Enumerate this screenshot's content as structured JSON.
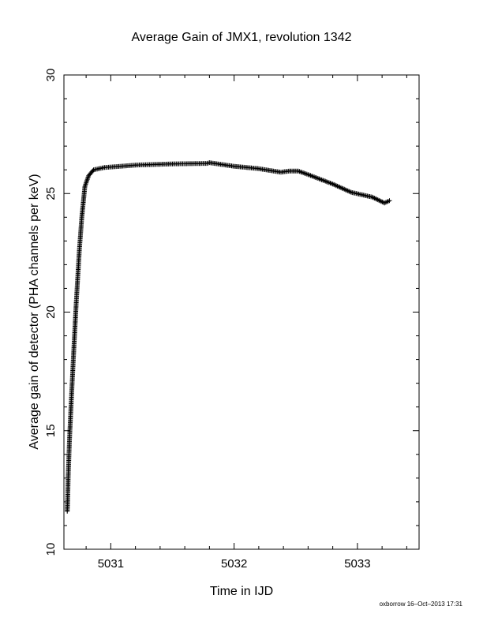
{
  "chart_data": {
    "type": "scatter",
    "title": "Average Gain of JMX1, revolution 1342",
    "xlabel": "Time in IJD",
    "ylabel": "Average gain of detector (PHA channels per keV)",
    "xlim": [
      5030.62,
      5033.5
    ],
    "ylim": [
      10,
      30
    ],
    "xticks": [
      5031,
      5032,
      5033
    ],
    "yticks": [
      10,
      15,
      20,
      25,
      30
    ],
    "marker": "+",
    "grid": false,
    "legend": "none",
    "key_points": [
      {
        "x": 5030.647,
        "y": 11.6
      },
      {
        "x": 5030.65,
        "y": 12.0
      },
      {
        "x": 5030.655,
        "y": 13.1
      },
      {
        "x": 5030.665,
        "y": 14.6
      },
      {
        "x": 5030.68,
        "y": 16.3
      },
      {
        "x": 5030.7,
        "y": 18.4
      },
      {
        "x": 5030.72,
        "y": 20.4
      },
      {
        "x": 5030.745,
        "y": 22.6
      },
      {
        "x": 5030.765,
        "y": 24.0
      },
      {
        "x": 5030.79,
        "y": 25.3
      },
      {
        "x": 5030.82,
        "y": 25.75
      },
      {
        "x": 5030.86,
        "y": 26.0
      },
      {
        "x": 5030.95,
        "y": 26.1
      },
      {
        "x": 5031.2,
        "y": 26.2
      },
      {
        "x": 5031.5,
        "y": 26.25
      },
      {
        "x": 5031.78,
        "y": 26.27
      },
      {
        "x": 5031.8,
        "y": 26.3
      },
      {
        "x": 5032.0,
        "y": 26.15
      },
      {
        "x": 5032.2,
        "y": 26.05
      },
      {
        "x": 5032.38,
        "y": 25.9
      },
      {
        "x": 5032.45,
        "y": 25.95
      },
      {
        "x": 5032.52,
        "y": 25.95
      },
      {
        "x": 5032.6,
        "y": 25.8
      },
      {
        "x": 5032.7,
        "y": 25.6
      },
      {
        "x": 5032.8,
        "y": 25.4
      },
      {
        "x": 5032.95,
        "y": 25.05
      },
      {
        "x": 5033.12,
        "y": 24.85
      },
      {
        "x": 5033.22,
        "y": 24.6
      },
      {
        "x": 5033.26,
        "y": 24.7
      }
    ]
  },
  "footer": {
    "credit": "oxborrow 16–Oct–2013 17:31"
  },
  "colors": {
    "background": "#ffffff",
    "ink": "#000000"
  }
}
